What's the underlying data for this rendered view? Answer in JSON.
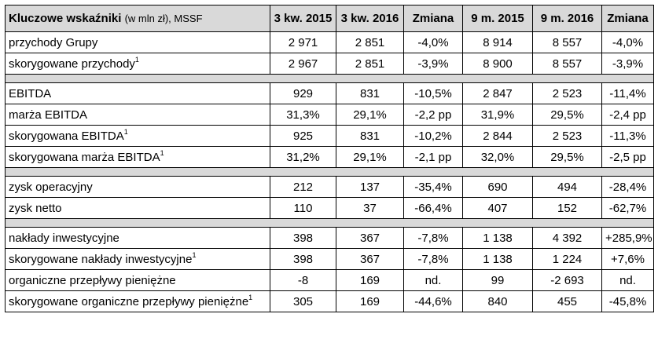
{
  "header": {
    "title": "Kluczowe wskaźniki",
    "unit": "(w mln zł), MSSF",
    "columns": [
      "3 kw. 2015",
      "3 kw. 2016",
      "Zmiana",
      "9 m. 2015",
      "9 m. 2016",
      "Zmiana"
    ]
  },
  "groups": [
    {
      "rows": [
        {
          "label": "przychody Grupy",
          "sup": "",
          "values": [
            "2 971",
            "2 851",
            "-4,0%",
            "8 914",
            "8 557",
            "-4,0%"
          ]
        },
        {
          "label": "skorygowane przychody",
          "sup": "1",
          "values": [
            "2 967",
            "2 851",
            "-3,9%",
            "8 900",
            "8 557",
            "-3,9%"
          ]
        }
      ]
    },
    {
      "rows": [
        {
          "label": "EBITDA",
          "sup": "",
          "values": [
            "929",
            "831",
            "-10,5%",
            "2 847",
            "2 523",
            "-11,4%"
          ]
        },
        {
          "label": "marża EBITDA",
          "sup": "",
          "values": [
            "31,3%",
            "29,1%",
            "-2,2 pp",
            "31,9%",
            "29,5%",
            "-2,4 pp"
          ]
        },
        {
          "label": "skorygowana EBITDA",
          "sup": "1",
          "values": [
            "925",
            "831",
            "-10,2%",
            "2 844",
            "2 523",
            "-11,3%"
          ]
        },
        {
          "label": "skorygowana marża EBITDA",
          "sup": "1",
          "values": [
            "31,2%",
            "29,1%",
            "-2,1 pp",
            "32,0%",
            "29,5%",
            "-2,5 pp"
          ]
        }
      ]
    },
    {
      "rows": [
        {
          "label": "zysk operacyjny",
          "sup": "",
          "values": [
            "212",
            "137",
            "-35,4%",
            "690",
            "494",
            "-28,4%"
          ]
        },
        {
          "label": "zysk netto",
          "sup": "",
          "values": [
            "110",
            "37",
            "-66,4%",
            "407",
            "152",
            "-62,7%"
          ]
        }
      ]
    },
    {
      "rows": [
        {
          "label": "nakłady inwestycyjne",
          "sup": "",
          "values": [
            "398",
            "367",
            "-7,8%",
            "1 138",
            "4 392",
            "+285,9%"
          ]
        },
        {
          "label": "skorygowane nakłady inwestycyjne",
          "sup": "1",
          "values": [
            "398",
            "367",
            "-7,8%",
            "1 138",
            "1 224",
            "+7,6%"
          ]
        },
        {
          "label": "organiczne przepływy pieniężne",
          "sup": "",
          "values": [
            "-8",
            "169",
            "nd.",
            "99",
            "-2 693",
            "nd."
          ]
        },
        {
          "label": "skorygowane organiczne przepływy pieniężne",
          "sup": "1",
          "values": [
            "305",
            "169",
            "-44,6%",
            "840",
            "455",
            "-45,8%"
          ]
        }
      ]
    }
  ]
}
